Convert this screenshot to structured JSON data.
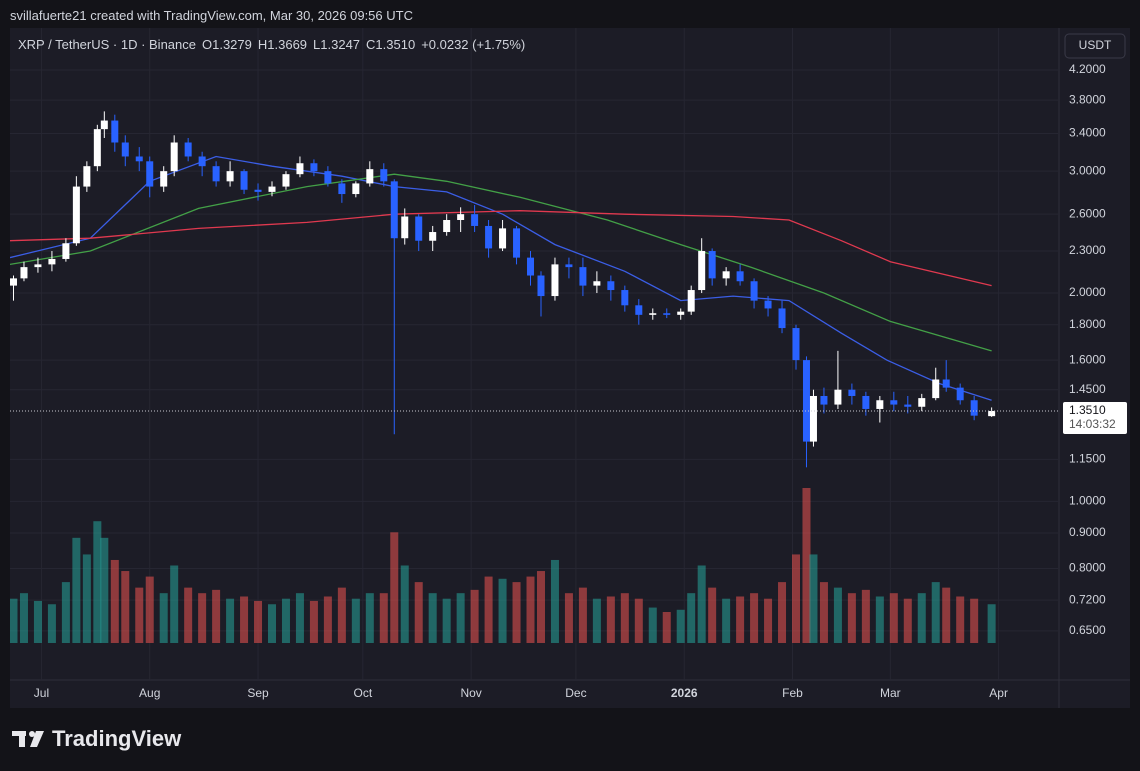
{
  "credit": "svillafuerte21 created with TradingView.com, Mar 30, 2026 09:56 UTC",
  "brand": "TradingView",
  "chart_data": {
    "type": "candlestick",
    "legend": {
      "symbol": "XRP / TetherUS · 1D · Binance",
      "open": {
        "value": 1.3279,
        "label": "O1.3279"
      },
      "high": {
        "value": 1.3669,
        "label": "H1.3669"
      },
      "low": {
        "value": 1.3247,
        "label": "L1.3247"
      },
      "close": {
        "value": 1.351,
        "label": "C1.3510"
      },
      "change": {
        "value": 0.0232,
        "label": "+0.0232 (+1.75%)"
      }
    },
    "currency": "USDT",
    "last_price": {
      "value": 1.351,
      "label": "1.3510"
    },
    "countdown": "14:03:32",
    "log_scale": true,
    "grid": true,
    "up_color": "#ffffff",
    "down_color": "#2962ff",
    "volume_up_color": "#26a69a",
    "volume_down_color": "#ef5350",
    "xlim": [
      "2025-06-22",
      "2026-04-18"
    ],
    "xticks": [
      {
        "value": "2025-07-01",
        "label": "Jul"
      },
      {
        "value": "2025-08-01",
        "label": "Aug"
      },
      {
        "value": "2025-09-01",
        "label": "Sep"
      },
      {
        "value": "2025-10-01",
        "label": "Oct"
      },
      {
        "value": "2025-11-01",
        "label": "Nov"
      },
      {
        "value": "2025-12-01",
        "label": "Dec"
      },
      {
        "value": "2026-01-01",
        "label": "2026"
      },
      {
        "value": "2026-02-01",
        "label": "Feb"
      },
      {
        "value": "2026-03-01",
        "label": "Mar"
      },
      {
        "value": "2026-04-01",
        "label": "Apr"
      }
    ],
    "ylim": [
      0.552,
      4.83
    ],
    "yticks": [
      {
        "value": 4.2,
        "label": "4.2000"
      },
      {
        "value": 3.8,
        "label": "3.8000"
      },
      {
        "value": 3.4,
        "label": "3.4000"
      },
      {
        "value": 3.0,
        "label": "3.0000"
      },
      {
        "value": 2.6,
        "label": "2.6000"
      },
      {
        "value": 2.3,
        "label": "2.3000"
      },
      {
        "value": 2.0,
        "label": "2.0000"
      },
      {
        "value": 1.8,
        "label": "1.8000"
      },
      {
        "value": 1.6,
        "label": "1.6000"
      },
      {
        "value": 1.45,
        "label": "1.4500"
      },
      {
        "value": 1.15,
        "label": "1.1500"
      },
      {
        "value": 1.0,
        "label": "1.0000"
      },
      {
        "value": 0.9,
        "label": "0.9000"
      },
      {
        "value": 0.8,
        "label": "0.8000"
      },
      {
        "value": 0.72,
        "label": "0.7200"
      },
      {
        "value": 0.65,
        "label": "0.6500"
      }
    ],
    "x": [
      "2025-06-23",
      "2025-06-26",
      "2025-06-30",
      "2025-07-04",
      "2025-07-08",
      "2025-07-11",
      "2025-07-14",
      "2025-07-17",
      "2025-07-19",
      "2025-07-22",
      "2025-07-25",
      "2025-07-29",
      "2025-08-01",
      "2025-08-05",
      "2025-08-08",
      "2025-08-12",
      "2025-08-16",
      "2025-08-20",
      "2025-08-24",
      "2025-08-28",
      "2025-09-01",
      "2025-09-05",
      "2025-09-09",
      "2025-09-13",
      "2025-09-17",
      "2025-09-21",
      "2025-09-25",
      "2025-09-29",
      "2025-10-03",
      "2025-10-07",
      "2025-10-10",
      "2025-10-13",
      "2025-10-17",
      "2025-10-21",
      "2025-10-25",
      "2025-10-29",
      "2025-11-02",
      "2025-11-06",
      "2025-11-10",
      "2025-11-14",
      "2025-11-18",
      "2025-11-21",
      "2025-11-25",
      "2025-11-29",
      "2025-12-03",
      "2025-12-07",
      "2025-12-11",
      "2025-12-15",
      "2025-12-19",
      "2025-12-23",
      "2025-12-27",
      "2025-12-31",
      "2026-01-03",
      "2026-01-06",
      "2026-01-09",
      "2026-01-13",
      "2026-01-17",
      "2026-01-21",
      "2026-01-25",
      "2026-01-29",
      "2026-02-02",
      "2026-02-05",
      "2026-02-07",
      "2026-02-10",
      "2026-02-14",
      "2026-02-18",
      "2026-02-22",
      "2026-02-26",
      "2026-03-02",
      "2026-03-06",
      "2026-03-10",
      "2026-03-14",
      "2026-03-17",
      "2026-03-21",
      "2026-03-25",
      "2026-03-30"
    ],
    "open": [
      2.05,
      2.1,
      2.18,
      2.2,
      2.24,
      2.36,
      2.85,
      3.05,
      3.45,
      3.55,
      3.3,
      3.15,
      3.1,
      2.85,
      3.0,
      3.3,
      3.15,
      3.05,
      2.9,
      3.0,
      2.82,
      2.8,
      2.85,
      2.97,
      3.08,
      3.0,
      2.88,
      2.78,
      2.88,
      3.02,
      2.9,
      2.4,
      2.58,
      2.38,
      2.45,
      2.55,
      2.6,
      2.5,
      2.32,
      2.48,
      2.25,
      2.12,
      1.98,
      2.2,
      2.18,
      2.05,
      2.08,
      2.02,
      1.92,
      1.86,
      1.87,
      1.86,
      1.88,
      2.02,
      2.3,
      2.1,
      2.15,
      2.08,
      1.95,
      1.9,
      1.78,
      1.6,
      1.22,
      1.42,
      1.38,
      1.45,
      1.42,
      1.36,
      1.4,
      1.38,
      1.37,
      1.41,
      1.5,
      1.46,
      1.4,
      1.3279
    ],
    "high": [
      2.12,
      2.22,
      2.25,
      2.3,
      2.4,
      2.95,
      3.1,
      3.5,
      3.66,
      3.62,
      3.38,
      3.25,
      3.15,
      3.05,
      3.38,
      3.35,
      3.2,
      3.1,
      3.1,
      3.02,
      2.88,
      2.9,
      3.0,
      3.15,
      3.12,
      3.05,
      2.92,
      2.9,
      3.1,
      3.08,
      2.92,
      2.65,
      2.6,
      2.5,
      2.6,
      2.66,
      2.68,
      2.55,
      2.55,
      2.5,
      2.3,
      2.15,
      2.25,
      2.25,
      2.25,
      2.15,
      2.12,
      2.05,
      1.96,
      1.9,
      1.9,
      1.9,
      2.05,
      2.4,
      2.32,
      2.18,
      2.2,
      2.1,
      1.98,
      1.95,
      1.8,
      1.62,
      1.45,
      1.46,
      1.65,
      1.48,
      1.44,
      1.42,
      1.44,
      1.42,
      1.43,
      1.56,
      1.6,
      1.48,
      1.42,
      1.3669
    ],
    "low": [
      1.95,
      2.08,
      2.14,
      2.15,
      2.22,
      2.34,
      2.8,
      3.0,
      3.35,
      3.2,
      3.05,
      3.0,
      2.75,
      2.8,
      2.95,
      3.1,
      2.95,
      2.85,
      2.85,
      2.78,
      2.72,
      2.76,
      2.82,
      2.94,
      2.95,
      2.85,
      2.7,
      2.75,
      2.85,
      2.85,
      1.25,
      2.35,
      2.3,
      2.3,
      2.42,
      2.45,
      2.45,
      2.25,
      2.3,
      2.2,
      2.05,
      1.85,
      1.95,
      2.1,
      1.98,
      2.0,
      1.95,
      1.88,
      1.8,
      1.83,
      1.84,
      1.83,
      1.86,
      2.0,
      2.05,
      2.05,
      2.05,
      1.9,
      1.85,
      1.75,
      1.55,
      1.12,
      1.2,
      1.34,
      1.36,
      1.38,
      1.33,
      1.3,
      1.35,
      1.34,
      1.35,
      1.4,
      1.44,
      1.38,
      1.31,
      1.3247
    ],
    "close": [
      2.1,
      2.18,
      2.2,
      2.24,
      2.36,
      2.85,
      3.05,
      3.45,
      3.55,
      3.3,
      3.15,
      3.1,
      2.85,
      3.0,
      3.3,
      3.15,
      3.05,
      2.9,
      3.0,
      2.82,
      2.8,
      2.85,
      2.97,
      3.08,
      3.0,
      2.88,
      2.78,
      2.88,
      3.02,
      2.9,
      2.4,
      2.58,
      2.38,
      2.45,
      2.55,
      2.6,
      2.5,
      2.32,
      2.48,
      2.25,
      2.12,
      1.98,
      2.2,
      2.18,
      2.05,
      2.08,
      2.02,
      1.92,
      1.86,
      1.87,
      1.86,
      1.88,
      2.02,
      2.3,
      2.1,
      2.15,
      2.08,
      1.95,
      1.9,
      1.78,
      1.6,
      1.22,
      1.42,
      1.38,
      1.45,
      1.42,
      1.36,
      1.4,
      1.38,
      1.37,
      1.41,
      1.5,
      1.46,
      1.4,
      1.33,
      1.351
    ],
    "volume": [
      40,
      45,
      38,
      35,
      55,
      95,
      80,
      110,
      95,
      75,
      65,
      50,
      60,
      45,
      70,
      50,
      45,
      48,
      40,
      42,
      38,
      35,
      40,
      45,
      38,
      42,
      50,
      40,
      45,
      45,
      100,
      70,
      55,
      45,
      40,
      45,
      48,
      60,
      58,
      55,
      60,
      65,
      75,
      45,
      50,
      40,
      42,
      45,
      40,
      32,
      28,
      30,
      45,
      70,
      50,
      40,
      42,
      45,
      40,
      55,
      80,
      140,
      80,
      55,
      50,
      45,
      48,
      42,
      45,
      40,
      45,
      55,
      50,
      42,
      40,
      35
    ],
    "lines": [
      {
        "color": "#3b5ee6",
        "x": [
          "2025-06-22",
          "2025-07-15",
          "2025-08-01",
          "2025-08-20",
          "2025-09-05",
          "2025-09-25",
          "2025-10-10",
          "2025-10-25",
          "2025-11-10",
          "2025-11-25",
          "2025-12-15",
          "2025-12-31",
          "2026-01-15",
          "2026-01-31",
          "2026-02-15",
          "2026-02-28",
          "2026-03-15",
          "2026-03-30"
        ],
        "values": [
          2.25,
          2.4,
          2.9,
          3.15,
          3.05,
          2.95,
          2.85,
          2.8,
          2.6,
          2.35,
          2.15,
          1.95,
          1.98,
          1.95,
          1.75,
          1.6,
          1.48,
          1.4
        ]
      },
      {
        "color": "#43a047",
        "x": [
          "2025-06-22",
          "2025-07-15",
          "2025-08-15",
          "2025-09-15",
          "2025-10-10",
          "2025-10-25",
          "2025-11-15",
          "2025-12-10",
          "2025-12-31",
          "2026-01-20",
          "2026-02-10",
          "2026-03-01",
          "2026-03-30"
        ],
        "values": [
          2.2,
          2.3,
          2.65,
          2.85,
          2.97,
          2.9,
          2.75,
          2.55,
          2.35,
          2.18,
          2.0,
          1.82,
          1.65
        ]
      },
      {
        "color": "#e0394f",
        "x": [
          "2025-06-22",
          "2025-07-15",
          "2025-08-15",
          "2025-09-15",
          "2025-10-10",
          "2025-11-15",
          "2025-12-15",
          "2026-01-15",
          "2026-01-31",
          "2026-02-15",
          "2026-03-01",
          "2026-03-30"
        ],
        "values": [
          2.38,
          2.4,
          2.48,
          2.53,
          2.6,
          2.63,
          2.6,
          2.58,
          2.55,
          2.38,
          2.22,
          2.05
        ]
      }
    ]
  }
}
